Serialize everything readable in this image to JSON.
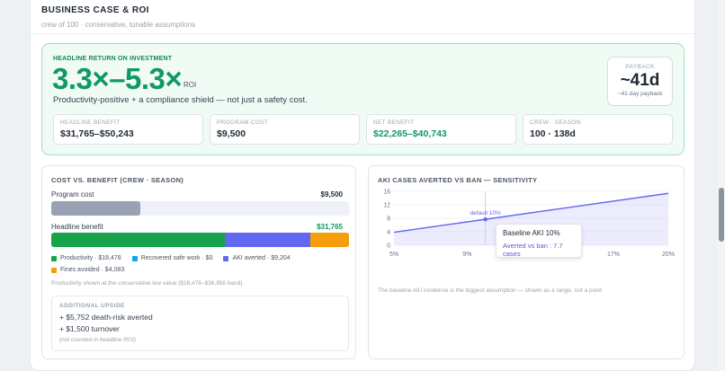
{
  "header": {
    "title": "BUSINESS CASE & ROI",
    "subtitle": "crew of 100 · conservative, tunable assumptions"
  },
  "hero": {
    "label": "HEADLINE RETURN ON INVESTMENT",
    "roi_range": "3.3×–5.3×",
    "roi_suffix": "ROI",
    "tagline": "Productivity-positive + a compliance shield — not just a safety cost.",
    "payback": {
      "label": "PAYBACK",
      "value": "~41d",
      "sub": "~41-day payback"
    },
    "metrics": [
      {
        "label": "HEADLINE BENEFIT",
        "value": "$31,765–$50,243"
      },
      {
        "label": "PROGRAM COST",
        "value": "$9,500"
      },
      {
        "label": "NET BENEFIT",
        "value": "$22,265–$40,743"
      },
      {
        "label": "CREW · SEASON",
        "value": "100 · 138d"
      }
    ]
  },
  "cost_panel": {
    "title": "COST VS. BENEFIT (CREW · SEASON)",
    "cost": {
      "label": "Program cost",
      "value": "$9,500",
      "fraction": 0.299
    },
    "benefit": {
      "label": "Headline benefit",
      "value": "$31,765",
      "segments": [
        {
          "label": "Productivity · $18,478",
          "value": 18478,
          "color": "#16a34a"
        },
        {
          "label": "Recovered safe work · $0",
          "value": 0,
          "color": "#0ea5e9"
        },
        {
          "label": "AKI averted · $9,204",
          "value": 9204,
          "color": "#6366f1"
        },
        {
          "label": "Fines avoided · $4,083",
          "value": 4083,
          "color": "#f59e0b"
        }
      ]
    },
    "note": "Productivity shown at the conservative low value ($18,478–$36,956 band).",
    "upside": {
      "title": "ADDITIONAL UPSIDE",
      "items": [
        "+ $5,752 death-risk averted",
        "+ $1,500 turnover"
      ],
      "note": "(not counted in headline ROI)"
    }
  },
  "sensitivity_panel": {
    "title": "AKI CASES AVERTED VS BAN — SENSITIVITY",
    "note": "The baseline AKI incidence is the biggest assumption — shown as a range, not a point.",
    "tooltip": {
      "title": "Baseline AKI 10%",
      "value": "Averted vs ban : 7.7 cases"
    }
  },
  "chart_data": {
    "type": "area",
    "title": "AKI CASES AVERTED VS BAN — SENSITIVITY",
    "x_ticks": [
      "5%",
      "9%",
      "13%",
      "17%",
      "20%"
    ],
    "x_tick_values": [
      5,
      9,
      13,
      17,
      20
    ],
    "y_ticks": [
      "0",
      "4",
      "8",
      "12",
      "16"
    ],
    "y_tick_values": [
      0,
      4,
      8,
      12,
      16
    ],
    "xlim": [
      5,
      20
    ],
    "ylim": [
      0,
      16
    ],
    "series": [
      {
        "x": [
          5,
          10,
          20
        ],
        "y": [
          3.85,
          7.7,
          15.4
        ]
      }
    ],
    "marker": {
      "x": 10,
      "y": 7.7,
      "label": "default 10%"
    },
    "color": "#6366f1"
  },
  "colors": {
    "accent_green": "#0f9a62",
    "accent_purple": "#6366f1"
  }
}
